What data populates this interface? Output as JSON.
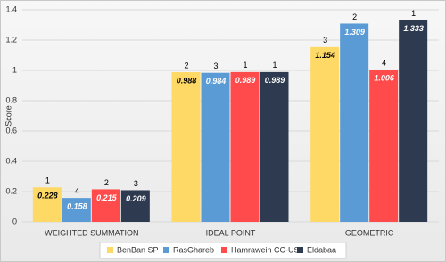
{
  "chart_data": {
    "type": "bar",
    "categories": [
      "WEIGHTED SUMMATION",
      "IDEAL POINT",
      "GEOMETRIC"
    ],
    "y_label": "Score",
    "ylim": [
      0,
      1.4
    ],
    "yticks": [
      0,
      0.2,
      0.4,
      0.6,
      0.8,
      1,
      1.2,
      1.4
    ],
    "grid": true,
    "legend": "bottom",
    "series": [
      {
        "name": "BenBan SP",
        "color": "#ffd966",
        "label_color": "#000000",
        "values": [
          0.228,
          0.988,
          1.154
        ],
        "ranks": [
          1,
          2,
          3
        ]
      },
      {
        "name": "RasGhareb",
        "color": "#5b9bd5",
        "label_color": "#ffffff",
        "values": [
          0.158,
          0.984,
          1.309
        ],
        "ranks": [
          4,
          3,
          2
        ]
      },
      {
        "name": "Hamrawein CC-US",
        "color": "#ff4b4b",
        "label_color": "#ffffff",
        "values": [
          0.215,
          0.989,
          1.006
        ],
        "ranks": [
          2,
          1,
          4
        ]
      },
      {
        "name": "Eldabaa",
        "color": "#2e3a4f",
        "label_color": "#ffffff",
        "values": [
          0.209,
          0.989,
          1.333
        ],
        "ranks": [
          3,
          1,
          1
        ]
      }
    ]
  }
}
